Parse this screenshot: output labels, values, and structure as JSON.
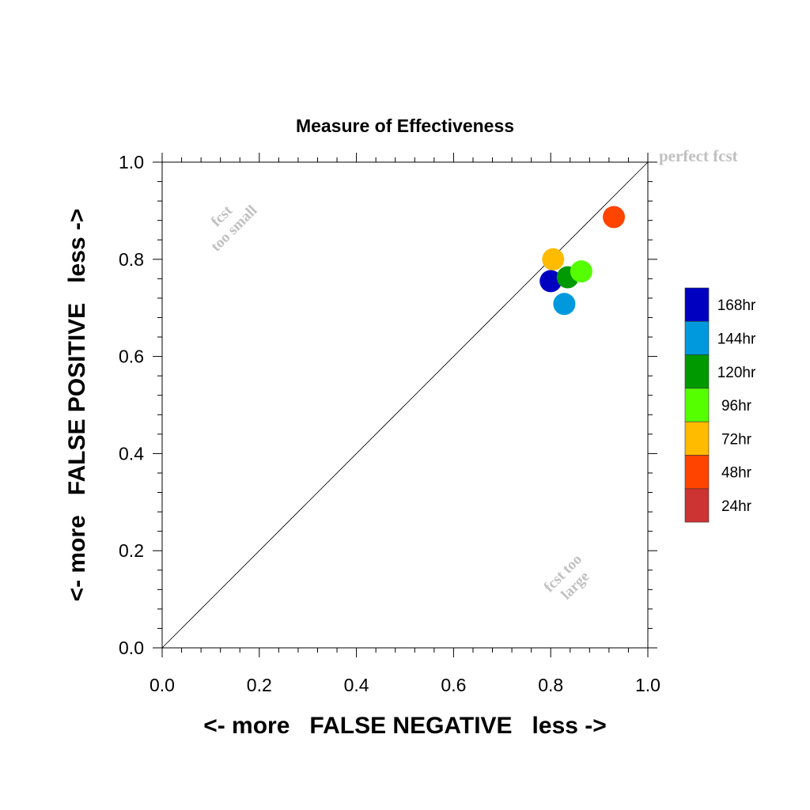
{
  "chart_data": {
    "type": "scatter",
    "title": "Measure of Effectiveness",
    "xlabel": "<- more   FALSE NEGATIVE   less ->",
    "ylabel": "<- more   FALSE POSITIVE   less ->",
    "xlim": [
      0,
      1
    ],
    "ylim": [
      0,
      1
    ],
    "x_ticks": [
      "0.0",
      "0.2",
      "0.4",
      "0.6",
      "0.8",
      "1.0"
    ],
    "y_ticks": [
      "0.0",
      "0.2",
      "0.4",
      "0.6",
      "0.8",
      "1.0"
    ],
    "grid": false,
    "legend_position": "right",
    "reference_line": {
      "from": [
        0,
        0
      ],
      "to": [
        1,
        1
      ]
    },
    "annotations": {
      "perfect": "perfect fcst",
      "small_line1": "fcst",
      "small_line2": "too small",
      "large_line1": "fcst too",
      "large_line2": "large"
    },
    "series": [
      {
        "name": "168hr",
        "color": "#0000c0",
        "x": 0.8,
        "y": 0.755
      },
      {
        "name": "144hr",
        "color": "#0099dd",
        "x": 0.828,
        "y": 0.708
      },
      {
        "name": "120hr",
        "color": "#009900",
        "x": 0.835,
        "y": 0.763
      },
      {
        "name": "96hr",
        "color": "#55ff00",
        "x": 0.863,
        "y": 0.775
      },
      {
        "name": "72hr",
        "color": "#ffbb00",
        "x": 0.805,
        "y": 0.8
      },
      {
        "name": "48hr",
        "color": "#ff4400",
        "x": 0.93,
        "y": 0.887
      },
      {
        "name": "24hr",
        "color": "#cc3333"
      }
    ]
  }
}
